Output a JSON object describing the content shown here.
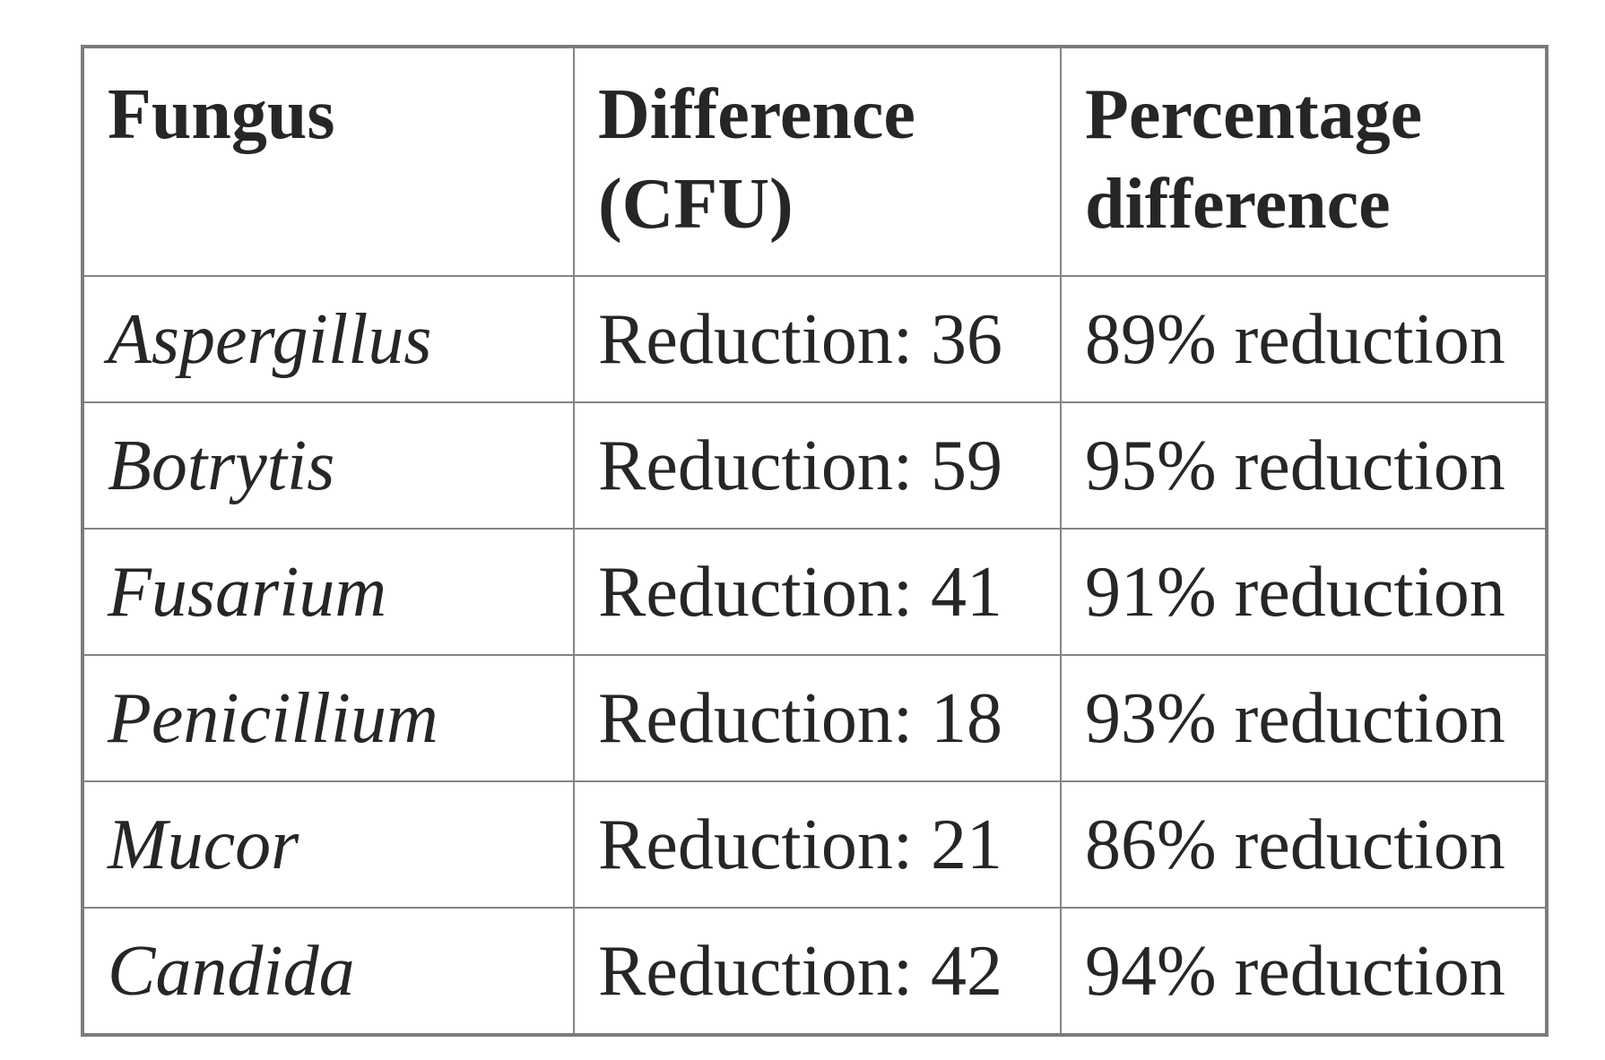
{
  "colors": {
    "background": "#ffffff",
    "border": "#808080",
    "text": "#262626"
  },
  "table": {
    "headers": [
      "Fungus",
      "Difference (CFU)",
      "Percentage difference"
    ],
    "rows": [
      {
        "fungus": "Aspergillus",
        "difference": "Reduction: 36",
        "percentage": "89% reduction"
      },
      {
        "fungus": "Botrytis",
        "difference": "Reduction: 59",
        "percentage": "95% reduction"
      },
      {
        "fungus": "Fusarium",
        "difference": "Reduction: 41",
        "percentage": "91% reduction"
      },
      {
        "fungus": "Penicillium",
        "difference": "Reduction: 18",
        "percentage": "93% reduction"
      },
      {
        "fungus": "Mucor",
        "difference": "Reduction: 21",
        "percentage": "86% reduction"
      },
      {
        "fungus": "Candida",
        "difference": "Reduction: 42",
        "percentage": "94% reduction"
      }
    ]
  }
}
